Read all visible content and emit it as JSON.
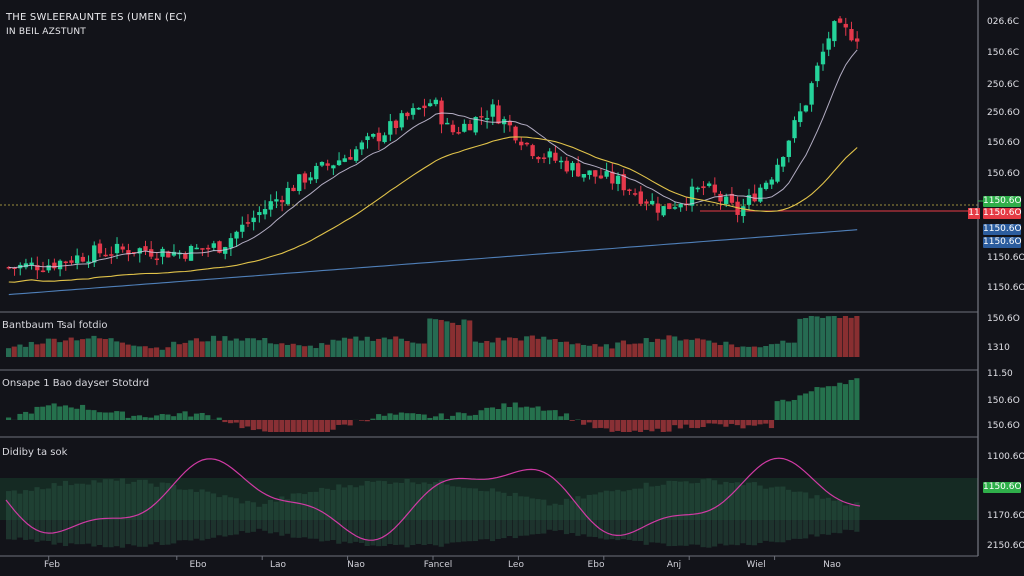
{
  "header": {
    "title": "THE SWLEERAUNTE ES (UMEN (EC)",
    "subtitle": "IN BEIL AZSTUNT"
  },
  "panels": {
    "panel1_label": "Bantbaum Tsal fotdio",
    "panel2_label": "Onsape 1 Bao dayser Stotdrd",
    "panel3_label": "Didiby ta sok"
  },
  "price_axis": [
    "026.6C",
    "150.6C",
    "250.6C",
    "250.6O",
    "150.6O",
    "150.6O",
    "1150.6O"
  ],
  "price_tags": {
    "green": "1150.6O",
    "red": "1150.6O",
    "red_left": "11",
    "blue1": "1150.6O",
    "blue2": "1150.6O"
  },
  "panel1_axis": [
    "150.6O",
    "1310"
  ],
  "panel2_axis": [
    "11.50",
    "150.6O",
    "150.6O"
  ],
  "panel3_axis": [
    "1100.6O",
    "1150.6O",
    "1170.6O",
    "2150.6O"
  ],
  "x_axis": [
    "Feb",
    "Ebo",
    "Lao",
    "Nao",
    "Fancel",
    "Leo",
    "Ebo",
    "Anj",
    "Wiel",
    "Nao"
  ],
  "colors": {
    "background": "#121319",
    "up": "#25d39a",
    "down": "#e5384b",
    "ma_fast": "#cfc8e0",
    "ma_mid": "#e0c24a",
    "ma_slow": "#4f7fb8",
    "oscillator": "#d03aa4"
  },
  "chart_data": {
    "type": "candlestick",
    "grid": false,
    "title": "THE SWLEERAUNTE ES (UMEN (EC)",
    "x": [
      "Feb",
      "Ebo",
      "Lao",
      "Nao",
      "Fancel",
      "Leo",
      "Ebo",
      "Anj",
      "Wiel",
      "Nao"
    ],
    "close_trend": [
      [
        0,
        118
      ],
      [
        0.05,
        120
      ],
      [
        0.1,
        126
      ],
      [
        0.15,
        128
      ],
      [
        0.2,
        126
      ],
      [
        0.25,
        130
      ],
      [
        0.3,
        150
      ],
      [
        0.35,
        168
      ],
      [
        0.4,
        180
      ],
      [
        0.45,
        195
      ],
      [
        0.5,
        210
      ],
      [
        0.52,
        192
      ],
      [
        0.57,
        205
      ],
      [
        0.62,
        182
      ],
      [
        0.68,
        170
      ],
      [
        0.72,
        165
      ],
      [
        0.77,
        150
      ],
      [
        0.82,
        162
      ],
      [
        0.86,
        148
      ],
      [
        0.9,
        170
      ],
      [
        0.94,
        210
      ],
      [
        0.97,
        250
      ],
      [
        1.0,
        246
      ]
    ]
  }
}
